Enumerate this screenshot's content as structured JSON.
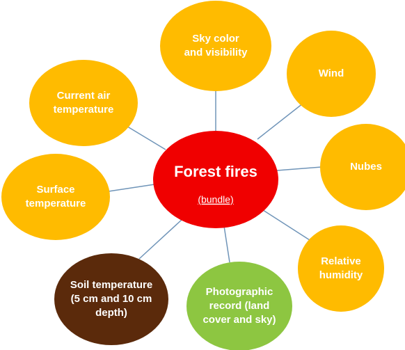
{
  "center": {
    "title": "Forest fires",
    "subtitle": "(bundle)"
  },
  "nodes": [
    {
      "lines": [
        "Sky color",
        "and visibility"
      ]
    },
    {
      "lines": [
        "Wind"
      ]
    },
    {
      "lines": [
        "Nubes"
      ]
    },
    {
      "lines": [
        "Relative",
        "humidity"
      ]
    },
    {
      "lines": [
        "Photographic",
        "record (land",
        "cover and sky)"
      ]
    },
    {
      "lines": [
        "Soil temperature",
        "(5 cm and 10 cm",
        "depth)"
      ]
    },
    {
      "lines": [
        "Surface",
        "temperature"
      ]
    },
    {
      "lines": [
        "Current air",
        "temperature"
      ]
    }
  ]
}
